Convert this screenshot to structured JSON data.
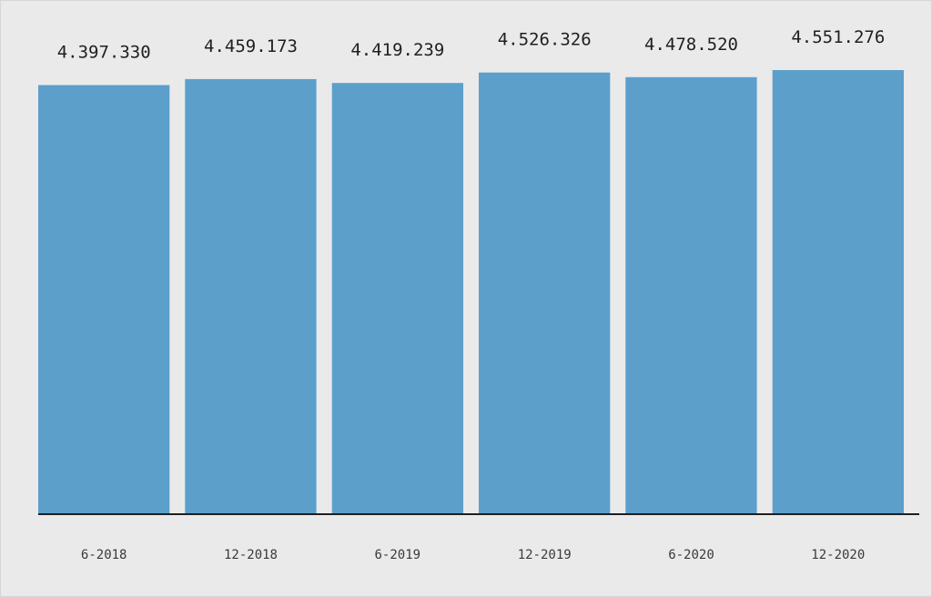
{
  "chart_data": {
    "type": "bar",
    "categories": [
      "6-2018",
      "12-2018",
      "6-2019",
      "12-2019",
      "6-2020",
      "12-2020"
    ],
    "values": [
      4397330,
      4459173,
      4419239,
      4526326,
      4478520,
      4551276
    ],
    "value_labels": [
      "4.397.330",
      "4.459.173",
      "4.419.239",
      "4.526.326",
      "4.478.520",
      "4.551.276"
    ],
    "title": "",
    "xlabel": "",
    "ylabel": "",
    "ylim": [
      0,
      4600000
    ],
    "grid": false,
    "legend": "none",
    "bar_color": "#5c9fcb",
    "axis_color": "#1f1f1f",
    "background_color": "#eaeaea"
  }
}
